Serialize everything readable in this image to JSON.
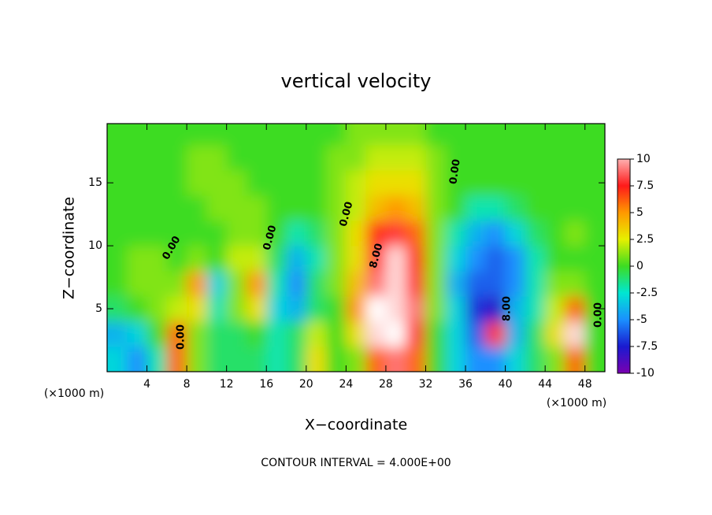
{
  "chart_data": {
    "type": "heatmap",
    "title": "vertical velocity",
    "xlabel": "X−coordinate",
    "ylabel": "Z−coordinate",
    "x_unit": "(×1000 m)",
    "x_unit_right": "(×1000 m)",
    "footer": "CONTOUR INTERVAL = 4.000E+00",
    "x": [
      1,
      3,
      5,
      7,
      9,
      11,
      13,
      15,
      17,
      19,
      21,
      23,
      25,
      27,
      29,
      31,
      33,
      35,
      37,
      39,
      41,
      43,
      45,
      47,
      49
    ],
    "y": [
      1,
      3,
      5,
      7,
      9,
      11,
      13,
      15,
      17,
      19
    ],
    "values": [
      [
        -3,
        -5,
        -2,
        6,
        1,
        -1,
        -1,
        -1,
        -2,
        -1,
        3,
        0,
        1,
        6,
        9,
        6,
        0,
        -3,
        -5,
        -5,
        -3,
        -1,
        1,
        6,
        0
      ],
      [
        -4,
        -3,
        0,
        6,
        1,
        -1,
        -1,
        0,
        -2,
        -1,
        2,
        0,
        3,
        11,
        12,
        8,
        0,
        -3,
        -6,
        8,
        -4,
        -1,
        3,
        11,
        0
      ],
      [
        -1,
        0,
        1,
        2,
        3,
        -2,
        1,
        3,
        -3,
        -4,
        -1,
        0,
        5,
        12,
        11,
        9,
        1,
        -3,
        -7,
        -8,
        -4,
        -2,
        2,
        6,
        0
      ],
      [
        0,
        1,
        1,
        1,
        5,
        -3,
        1,
        5,
        -2,
        -5,
        -1,
        1,
        4,
        9,
        11,
        8,
        1,
        -4,
        -6,
        -6,
        -5,
        -2,
        1,
        1,
        0
      ],
      [
        0,
        1,
        1,
        0,
        1,
        0,
        2,
        2,
        -1,
        -4,
        -2,
        1,
        3,
        8,
        11,
        7,
        1,
        -3,
        -5,
        -6,
        -5,
        -2,
        0,
        0,
        0
      ],
      [
        0,
        0,
        0,
        0,
        0,
        0,
        1,
        1,
        0,
        -2,
        -1,
        1,
        3,
        7,
        8,
        6,
        1,
        -2,
        -4,
        -5,
        -3,
        -1,
        0,
        1,
        0
      ],
      [
        0,
        0,
        0,
        0,
        0,
        1,
        1,
        1,
        0,
        0,
        0,
        1,
        2,
        4,
        5,
        4,
        1,
        0,
        -2,
        -2,
        -1,
        0,
        0,
        0,
        0
      ],
      [
        0,
        0,
        0,
        0,
        1,
        1,
        1,
        0,
        0,
        0,
        0,
        1,
        2,
        3,
        3,
        3,
        1,
        0,
        0,
        0,
        0,
        0,
        0,
        0,
        0
      ],
      [
        0,
        0,
        0,
        0,
        1,
        1,
        0,
        0,
        0,
        0,
        0,
        1,
        1,
        2,
        2,
        2,
        1,
        0,
        0,
        0,
        0,
        0,
        0,
        0,
        0
      ],
      [
        0,
        0,
        0,
        0,
        0,
        0,
        0,
        0,
        0,
        0,
        0,
        0,
        1,
        1,
        1,
        1,
        0,
        0,
        0,
        0,
        0,
        0,
        0,
        0,
        0
      ]
    ],
    "xlim": [
      0,
      50
    ],
    "ylim": [
      0,
      19.7
    ],
    "xticks": [
      4,
      8,
      12,
      16,
      20,
      24,
      28,
      32,
      36,
      40,
      44,
      48
    ],
    "yticks": [
      5,
      10,
      15
    ],
    "clim": [
      -10,
      10
    ],
    "cticks": [
      10,
      7.5,
      5,
      2.5,
      0,
      -2.5,
      -5,
      -7.5,
      -10
    ],
    "colors": [
      "#ffb0b0",
      "#ff1a1a",
      "#ff9900",
      "#e6f000",
      "#3ddc22",
      "#00e6d2",
      "#1a90ff",
      "#1a1ad0",
      "#7a00b0"
    ],
    "contour_labels": [
      "0.00",
      "0.00",
      "0.00",
      "0.00",
      "8.00",
      "0.00",
      "0.00",
      "8.00"
    ]
  }
}
